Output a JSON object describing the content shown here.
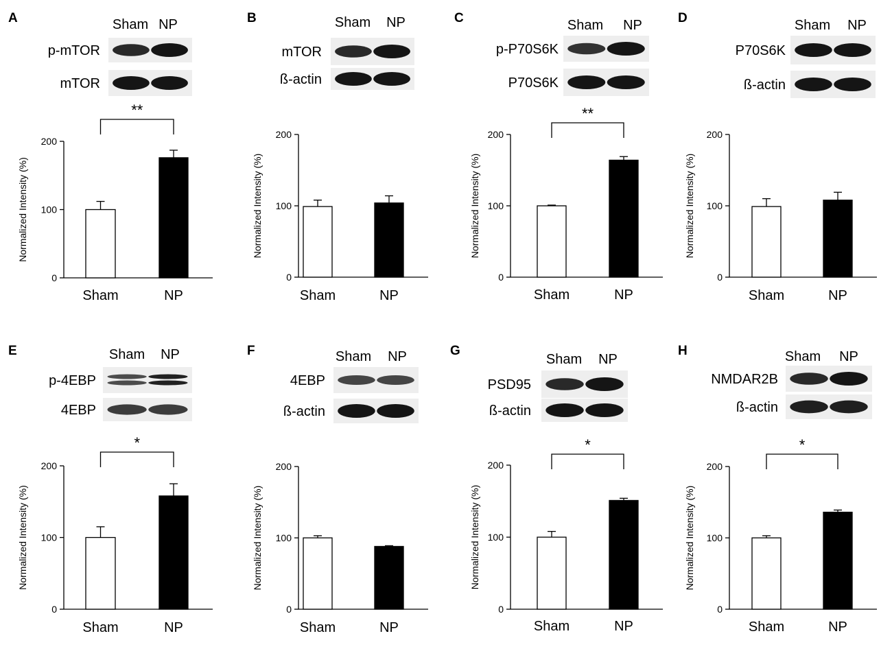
{
  "figure": {
    "lane_labels": [
      "Sham",
      "NP"
    ]
  },
  "colors": {
    "sham_fill": "#ffffff",
    "np_fill": "#000000",
    "axis": "#000000",
    "blot_background": "#eeeeee",
    "band": "#151515"
  },
  "panels": [
    {
      "letter": "A",
      "blots": [
        {
          "label": "p-mTOR",
          "bands": [
            0.8,
            1.0
          ]
        },
        {
          "label": "mTOR",
          "bands": [
            1.0,
            1.0
          ]
        }
      ],
      "significance": "**"
    },
    {
      "letter": "B",
      "blots": [
        {
          "label": "mTOR",
          "bands": [
            0.8,
            1.0
          ]
        },
        {
          "label": "ß-actin",
          "bands": [
            1.0,
            1.0
          ]
        }
      ],
      "significance": ""
    },
    {
      "letter": "C",
      "blots": [
        {
          "label": "p-P70S6K",
          "bands": [
            0.7,
            1.0
          ]
        },
        {
          "label": "P70S6K",
          "bands": [
            1.0,
            1.0
          ]
        }
      ],
      "significance": "**"
    },
    {
      "letter": "D",
      "blots": [
        {
          "label": "P70S6K",
          "bands": [
            1.0,
            1.0
          ]
        },
        {
          "label": "ß-actin",
          "bands": [
            1.0,
            1.0
          ]
        }
      ],
      "significance": ""
    },
    {
      "letter": "E",
      "blots": [
        {
          "label": "p-4EBP",
          "bands": [
            0.75,
            0.95
          ],
          "doublet": true
        },
        {
          "label": "4EBP",
          "bands": [
            0.6,
            0.6
          ]
        }
      ],
      "significance": "*"
    },
    {
      "letter": "F",
      "blots": [
        {
          "label": "4EBP",
          "bands": [
            0.5,
            0.5
          ]
        },
        {
          "label": "ß-actin",
          "bands": [
            1.0,
            1.0
          ]
        }
      ],
      "significance": ""
    },
    {
      "letter": "G",
      "blots": [
        {
          "label": "PSD95",
          "bands": [
            0.8,
            1.0
          ]
        },
        {
          "label": "ß-actin",
          "bands": [
            1.0,
            1.0
          ]
        }
      ],
      "significance": "*"
    },
    {
      "letter": "H",
      "blots": [
        {
          "label": "NMDAR2B",
          "bands": [
            0.8,
            1.0
          ]
        },
        {
          "label": "ß-actin",
          "bands": [
            0.9,
            0.9
          ]
        }
      ],
      "significance": "*"
    }
  ],
  "chart_data": [
    {
      "type": "bar",
      "panel": "A",
      "categories": [
        "Sham",
        "NP"
      ],
      "values": [
        100,
        176
      ],
      "errors": [
        12,
        11
      ],
      "ylabel": "Normalized Intensity (%)",
      "yticks": [
        0,
        100,
        200
      ],
      "ylim": [
        0,
        200
      ],
      "grid": false,
      "legend": "none"
    },
    {
      "type": "bar",
      "panel": "B",
      "categories": [
        "Sham",
        "NP"
      ],
      "values": [
        99,
        104
      ],
      "errors": [
        9,
        10
      ],
      "ylabel": "Normalized Intensity (%)",
      "yticks": [
        0,
        100,
        200
      ],
      "ylim": [
        0,
        200
      ],
      "grid": false,
      "legend": "none"
    },
    {
      "type": "bar",
      "panel": "C",
      "categories": [
        "Sham",
        "NP"
      ],
      "values": [
        100,
        164
      ],
      "errors": [
        1,
        5
      ],
      "ylabel": "Normalized Intensity (%)",
      "yticks": [
        0,
        100,
        200
      ],
      "ylim": [
        0,
        200
      ],
      "grid": false,
      "legend": "none"
    },
    {
      "type": "bar",
      "panel": "D",
      "categories": [
        "Sham",
        "NP"
      ],
      "values": [
        99,
        108
      ],
      "errors": [
        11,
        11
      ],
      "ylabel": "Normalized Intensity (%)",
      "yticks": [
        0,
        100,
        200
      ],
      "ylim": [
        0,
        200
      ],
      "grid": false,
      "legend": "none"
    },
    {
      "type": "bar",
      "panel": "E",
      "categories": [
        "Sham",
        "NP"
      ],
      "values": [
        100,
        158
      ],
      "errors": [
        15,
        17
      ],
      "ylabel": "Normalized Intensity (%)",
      "yticks": [
        0,
        100,
        200
      ],
      "ylim": [
        0,
        200
      ],
      "grid": false,
      "legend": "none"
    },
    {
      "type": "bar",
      "panel": "F",
      "categories": [
        "Sham",
        "NP"
      ],
      "values": [
        100,
        88
      ],
      "errors": [
        3,
        1
      ],
      "ylabel": "Normalized Intensity (%)",
      "yticks": [
        0,
        100,
        200
      ],
      "ylim": [
        0,
        200
      ],
      "grid": false,
      "legend": "none"
    },
    {
      "type": "bar",
      "panel": "G",
      "categories": [
        "Sham",
        "NP"
      ],
      "values": [
        100,
        151
      ],
      "errors": [
        8,
        3
      ],
      "ylabel": "Normalized Intensity (%)",
      "yticks": [
        0,
        100,
        200
      ],
      "ylim": [
        0,
        200
      ],
      "grid": false,
      "legend": "none"
    },
    {
      "type": "bar",
      "panel": "H",
      "categories": [
        "Sham",
        "NP"
      ],
      "values": [
        100,
        136
      ],
      "errors": [
        3,
        3
      ],
      "ylabel": "Normalized Intensity (%)",
      "yticks": [
        0,
        100,
        200
      ],
      "ylim": [
        0,
        200
      ],
      "grid": false,
      "legend": "none"
    }
  ]
}
